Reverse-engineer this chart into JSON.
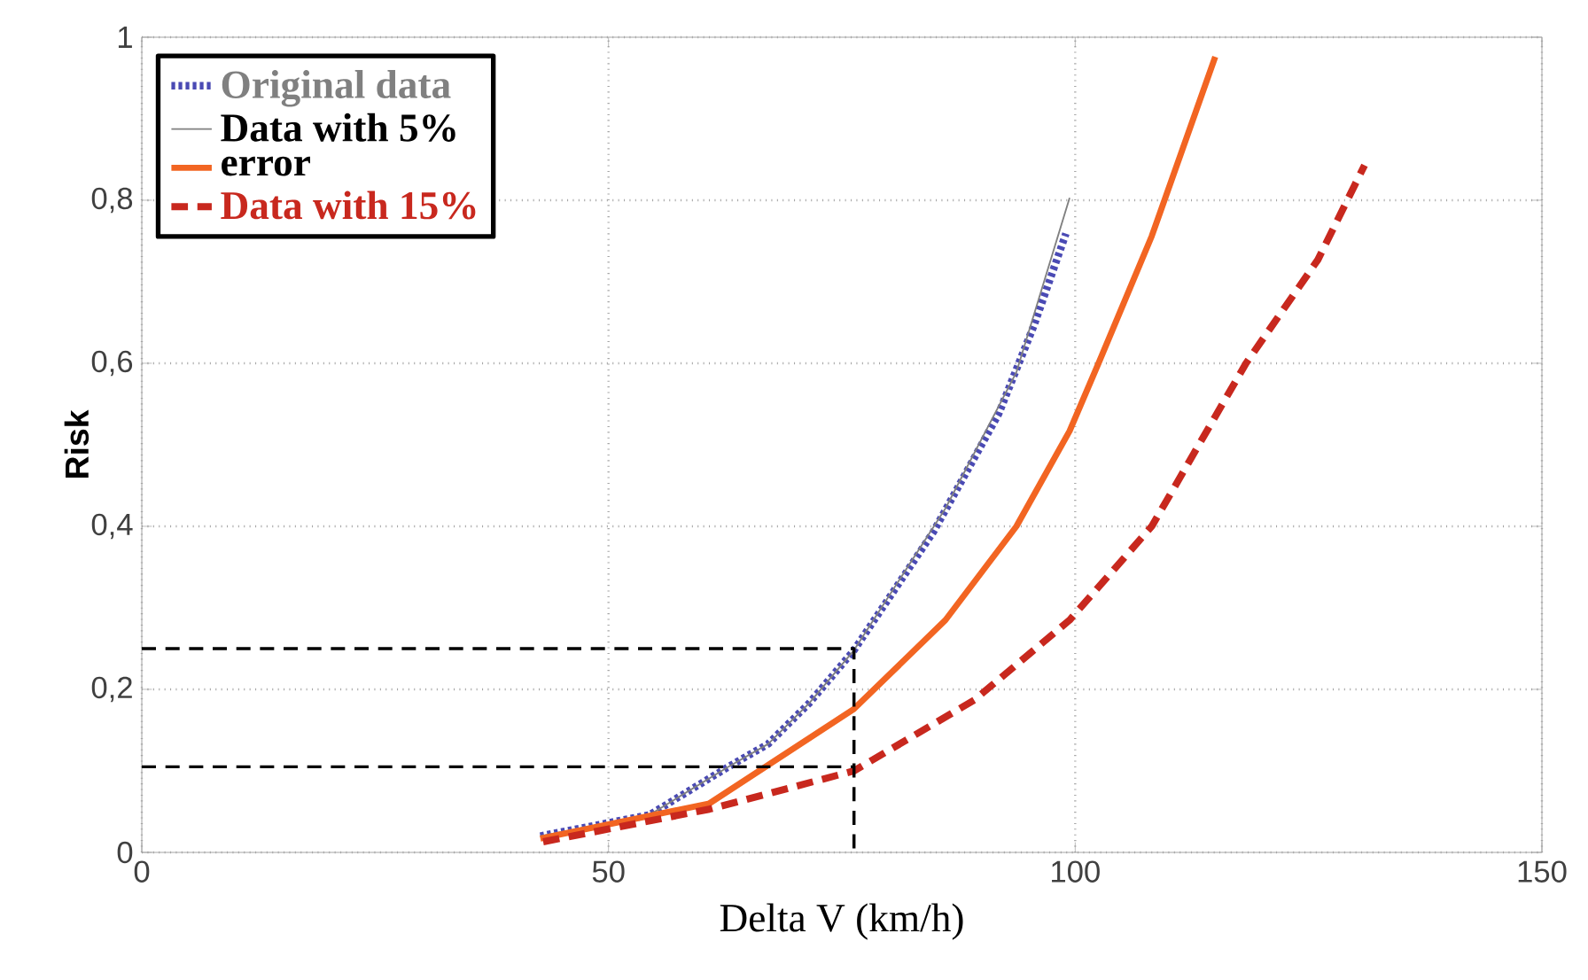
{
  "chart_data": {
    "type": "line",
    "xlabel": "Delta V (km/h)",
    "ylabel": "Risk",
    "xlim": [
      0,
      150
    ],
    "xticks": [
      0,
      50,
      100,
      150
    ],
    "ylim": [
      0,
      1
    ],
    "yticks": [
      0,
      {
        "value": 0.2,
        "label": "0,2"
      },
      {
        "value": 0.4,
        "label": "0,4"
      },
      {
        "value": 0.6,
        "label": "0,6"
      },
      {
        "value": 0.8,
        "label": "0,8"
      },
      1
    ],
    "grid": true,
    "legend": "top left",
    "marker": "none",
    "series": [
      {
        "name": "Original data",
        "color": "#4a4ab4",
        "line_style": "dotted",
        "x": [
          42.7,
          54.4,
          62.7,
          67.1,
          71.5,
          76.3,
          84.8,
          91.8,
          95.6,
          99.0
        ],
        "values": [
          0.02,
          0.046,
          0.104,
          0.133,
          0.183,
          0.248,
          0.393,
          0.538,
          0.647,
          0.759
        ]
      },
      {
        "name": "Data with 5%",
        "color": "#808080",
        "line_style": "solid",
        "x": [
          42.7,
          54.4,
          62.7,
          67.1,
          71.5,
          76.3,
          86.1,
          93.7,
          99.4
        ],
        "values": [
          0.02,
          0.046,
          0.104,
          0.133,
          0.183,
          0.248,
          0.422,
          0.589,
          0.803
        ]
      },
      {
        "name": "error",
        "color": "#f26522",
        "line_style": "solid",
        "x": [
          42.7,
          60.8,
          76.3,
          86.1,
          93.7,
          99.4,
          102.5,
          108.2,
          115.0
        ],
        "values": [
          0.017,
          0.06,
          0.176,
          0.285,
          0.4,
          0.517,
          0.6,
          0.756,
          0.976
        ]
      },
      {
        "name": "Data with 15%",
        "color": "#c8281e",
        "line_style": "dashed",
        "x": [
          43.0,
          60.8,
          76.3,
          89.2,
          99.4,
          108.2,
          118.3,
          126.0,
          131.0
        ],
        "values": [
          0.013,
          0.053,
          0.1,
          0.187,
          0.285,
          0.4,
          0.6,
          0.727,
          0.843
        ]
      },
      {
        "color": "#000000",
        "line_style": "dashed",
        "x": [
          0,
          76.3,
          76.3
        ],
        "values": [
          0.25,
          0.25,
          0
        ]
      },
      {
        "color": "#000000",
        "line_style": "dashed",
        "x": [
          0,
          76.3
        ],
        "values": [
          0.105,
          0.105
        ]
      }
    ]
  }
}
